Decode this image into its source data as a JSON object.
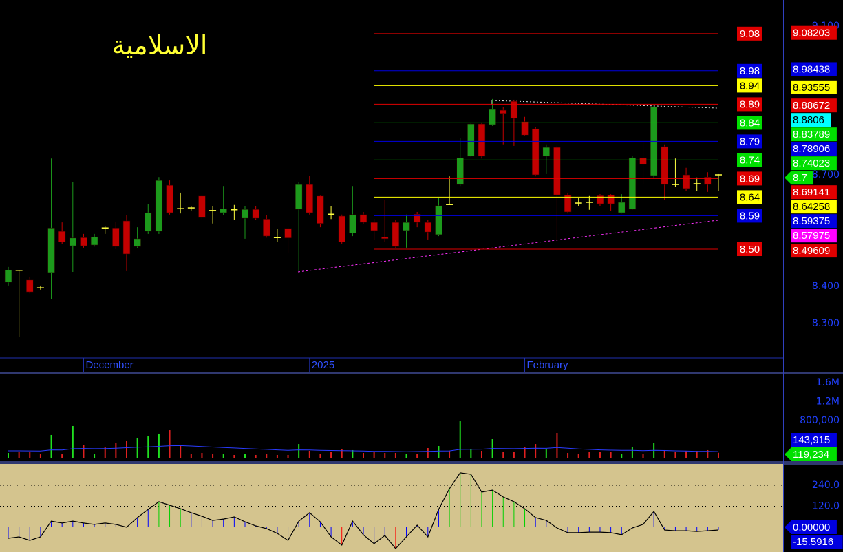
{
  "chart_data": [
    {
      "type": "candlestick",
      "title": "الاسلامية",
      "title_color": "#ffff33",
      "categories": [
        null,
        null,
        null,
        null,
        null,
        null,
        null,
        "December",
        null,
        null,
        null,
        null,
        null,
        null,
        null,
        null,
        null,
        null,
        null,
        null,
        null,
        null,
        null,
        null,
        null,
        null,
        null,
        null,
        "2025",
        null,
        null,
        null,
        null,
        null,
        null,
        null,
        null,
        null,
        null,
        null,
        null,
        null,
        null,
        null,
        null,
        null,
        null,
        null,
        "February",
        null,
        null,
        null,
        null,
        null,
        null,
        null,
        null,
        null,
        null,
        null,
        null,
        null,
        null,
        null,
        null,
        null,
        null
      ],
      "open": [
        8.411,
        8.443,
        8.417,
        8.396,
        8.437,
        8.548,
        8.509,
        8.531,
        8.511,
        8.557,
        8.557,
        8.576,
        8.507,
        8.548,
        8.548,
        8.672,
        8.609,
        8.611,
        8.643,
        8.604,
        8.598,
        8.606,
        8.583,
        8.607,
        8.581,
        8.531,
        8.556,
        8.607,
        8.674,
        8.643,
        8.594,
        8.589,
        8.543,
        8.593,
        8.572,
        8.533,
        8.572,
        8.55,
        8.594,
        8.572,
        8.539,
        8.62,
        8.674,
        8.75,
        8.837,
        8.835,
        8.874,
        8.898,
        8.843,
        8.824,
        8.75,
        8.774,
        8.646,
        8.624,
        8.626,
        8.644,
        8.646,
        8.598,
        8.607,
        8.746,
        8.698,
        8.776,
        8.674,
        8.7,
        8.676,
        8.694,
        8.7
      ],
      "high": [
        8.452,
        8.443,
        8.426,
        8.402,
        8.744,
        8.572,
        8.68,
        8.541,
        8.541,
        8.561,
        8.574,
        8.591,
        8.559,
        8.622,
        8.694,
        8.685,
        8.652,
        8.615,
        8.646,
        8.615,
        8.67,
        8.619,
        8.615,
        8.615,
        8.591,
        8.554,
        8.559,
        8.68,
        8.698,
        8.646,
        8.615,
        8.593,
        8.67,
        8.6,
        8.581,
        8.633,
        8.578,
        8.593,
        8.6,
        8.578,
        8.639,
        8.696,
        8.8,
        8.841,
        8.841,
        8.904,
        8.883,
        8.902,
        8.856,
        8.828,
        8.782,
        8.778,
        8.652,
        8.639,
        8.643,
        8.648,
        8.648,
        8.648,
        8.75,
        8.786,
        8.887,
        8.782,
        8.744,
        8.719,
        8.693,
        8.707,
        8.702
      ],
      "low": [
        8.402,
        8.263,
        8.381,
        8.391,
        8.365,
        8.513,
        8.439,
        8.504,
        8.507,
        8.541,
        8.5,
        8.441,
        8.504,
        8.541,
        8.541,
        8.593,
        8.596,
        8.604,
        8.581,
        8.569,
        8.591,
        8.578,
        8.528,
        8.578,
        8.531,
        8.519,
        8.491,
        8.441,
        8.593,
        8.559,
        8.581,
        8.515,
        8.535,
        8.569,
        8.526,
        8.519,
        8.504,
        8.504,
        8.559,
        8.526,
        8.535,
        8.619,
        8.67,
        8.748,
        8.744,
        8.832,
        8.782,
        8.778,
        8.804,
        8.696,
        8.702,
        8.522,
        8.596,
        8.615,
        8.606,
        8.615,
        8.602,
        8.596,
        8.606,
        8.674,
        8.693,
        8.633,
        8.667,
        8.656,
        8.656,
        8.654,
        8.657
      ],
      "close": [
        8.444,
        8.443,
        8.385,
        8.396,
        8.557,
        8.519,
        8.53,
        8.509,
        8.533,
        8.557,
        8.507,
        8.487,
        8.528,
        8.598,
        8.685,
        8.598,
        8.609,
        8.611,
        8.585,
        8.604,
        8.609,
        8.606,
        8.607,
        8.583,
        8.535,
        8.531,
        8.53,
        8.674,
        8.598,
        8.569,
        8.594,
        8.519,
        8.593,
        8.572,
        8.55,
        8.528,
        8.507,
        8.572,
        8.572,
        8.546,
        8.617,
        8.62,
        8.746,
        8.837,
        8.75,
        8.876,
        8.865,
        8.852,
        8.807,
        8.7,
        8.774,
        8.646,
        8.6,
        8.624,
        8.626,
        8.622,
        8.622,
        8.626,
        8.746,
        8.728,
        8.883,
        8.674,
        8.674,
        8.663,
        8.676,
        8.674,
        8.7
      ],
      "up_color": "#1c9a1c",
      "down_color": "#c40000",
      "doji_color": "#ffff40",
      "ylim": [
        8.2074,
        9.1704
      ],
      "yticks": [
        {
          "value": 9.1,
          "label": "9.100"
        },
        {
          "value": 8.7,
          "label": "8.700"
        },
        {
          "value": 8.4,
          "label": "8.400"
        },
        {
          "value": 8.3,
          "label": "8.300"
        }
      ],
      "levels": [
        {
          "value": 9.08,
          "color": "#e00000"
        },
        {
          "value": 8.98,
          "color": "#0000e0"
        },
        {
          "value": 8.94,
          "color": "#ffff00"
        },
        {
          "value": 8.89,
          "color": "#e00000"
        },
        {
          "value": 8.84,
          "color": "#00e000"
        },
        {
          "value": 8.79,
          "color": "#0000e0"
        },
        {
          "value": 8.74,
          "color": "#00e000"
        },
        {
          "value": 8.69,
          "color": "#e00000"
        },
        {
          "value": 8.64,
          "color": "#ffff00"
        },
        {
          "value": 8.59,
          "color": "#0000e0"
        },
        {
          "value": 8.5,
          "label": "8.50",
          "color": "#e00000"
        }
      ],
      "price_labels": [
        {
          "value": 9.08203,
          "color": "#e00000"
        },
        {
          "value": 8.98438,
          "color": "#0000e0"
        },
        {
          "value": 8.93555,
          "color": "#ffff00"
        },
        {
          "value": 8.88672,
          "color": "#e00000"
        },
        {
          "value": 8.8806,
          "color": "#00ffff"
        },
        {
          "value": 8.83789,
          "color": "#00e000"
        },
        {
          "value": 8.78906,
          "color": "#0000e0"
        },
        {
          "value": 8.74023,
          "color": "#00e000"
        },
        {
          "value": 8.7,
          "color": "#00e000",
          "arrow": true
        },
        {
          "value": 8.69141,
          "color": "#e00000"
        },
        {
          "value": 8.64258,
          "color": "#ffff00"
        },
        {
          "value": 8.59375,
          "color": "#0000e0"
        },
        {
          "value": 8.57975,
          "color": "#ff00ff"
        },
        {
          "value": 8.49609,
          "color": "#e00000"
        }
      ]
    },
    {
      "type": "bar",
      "values": [
        116000,
        131000,
        145000,
        87000,
        495000,
        87000,
        684000,
        291000,
        87000,
        233000,
        335000,
        364000,
        436000,
        465000,
        524000,
        596000,
        291000,
        102000,
        116000,
        102000,
        87000,
        73000,
        87000,
        73000,
        87000,
        73000,
        73000,
        305000,
        160000,
        102000,
        131000,
        189000,
        175000,
        116000,
        131000,
        116000,
        116000,
        102000,
        102000,
        218000,
        262000,
        160000,
        785000,
        189000,
        160000,
        407000,
        131000,
        145000,
        233000,
        305000,
        204000,
        538000,
        116000,
        102000,
        131000,
        145000,
        145000,
        102000,
        247000,
        102000,
        320000,
        175000,
        145000,
        160000,
        160000,
        175000,
        119234
      ],
      "ma_values": [
        160000,
        160000,
        158000,
        155000,
        180000,
        178000,
        205000,
        210000,
        205000,
        208000,
        215000,
        225000,
        235000,
        245000,
        255000,
        268000,
        270000,
        262000,
        250000,
        240000,
        230000,
        220000,
        210000,
        200000,
        190000,
        180000,
        172000,
        180000,
        178000,
        172000,
        168000,
        165000,
        160000,
        155000,
        150000,
        148000,
        145000,
        142000,
        145000,
        150000,
        155000,
        158000,
        190000,
        192000,
        195000,
        210000,
        208000,
        205000,
        210000,
        215000,
        212000,
        230000,
        215000,
        200000,
        190000,
        180000,
        175000,
        172000,
        170000,
        165000,
        172000,
        168000,
        160000,
        155000,
        150000,
        148000,
        143915
      ],
      "ma_color": "#2a3cff",
      "ylim": [
        0,
        1760000
      ],
      "yticks": [
        {
          "value": 1600000,
          "label": "1.6M"
        },
        {
          "value": 1200000,
          "label": "1.2M"
        },
        {
          "value": 800000,
          "label": "800,000"
        }
      ],
      "price_labels": [
        {
          "value": 143915,
          "label": "143,915",
          "color": "#0000e0"
        },
        {
          "value": 119234,
          "label": "119,234",
          "color": "#00e000",
          "arrow": true
        }
      ]
    },
    {
      "type": "line",
      "values": [
        -63,
        -55,
        -75,
        -55,
        35,
        24,
        35,
        24,
        16,
        24,
        16,
        0,
        55,
        102,
        146,
        126,
        106,
        83,
        63,
        39,
        47,
        59,
        31,
        8,
        -8,
        -35,
        -75,
        35,
        83,
        31,
        -55,
        -102,
        35,
        -43,
        -94,
        -47,
        -122,
        -55,
        12,
        -55,
        102,
        220,
        311,
        303,
        201,
        212,
        173,
        146,
        106,
        55,
        39,
        -4,
        -31,
        -31,
        -28,
        -28,
        -31,
        -43,
        -4,
        16,
        90,
        -16,
        -20,
        -20,
        -24,
        -20,
        -15.5916
      ],
      "bar_colors": [
        "#0000ff",
        "#0000ff",
        "#0000ff",
        "#0000ff",
        "#0000ff",
        "#0000ff",
        "#0000ff",
        "#0000ff",
        "#0000ff",
        "#0000ff",
        "#0000ff",
        "#0000ff",
        "#0000ff",
        "#0000ff",
        "#00d000",
        "#00d000",
        "#00d000",
        "#0000ff",
        "#0000ff",
        "#0000ff",
        "#0000ff",
        "#0000ff",
        "#0000ff",
        "#0000ff",
        "#0000ff",
        "#0000ff",
        "#0000ff",
        "#0000ff",
        "#0000ff",
        "#0000ff",
        "#0000ff",
        "#ff0000",
        "#0000ff",
        "#0000ff",
        "#0000ff",
        "#0000ff",
        "#ff0000",
        "#0000ff",
        "#0000ff",
        "#0000ff",
        "#0000ff",
        "#00d000",
        "#00d000",
        "#00d000",
        "#00d000",
        "#00d000",
        "#00d000",
        "#00d000",
        "#00d000",
        "#0000ff",
        "#0000ff",
        "#0000ff",
        "#0000ff",
        "#0000ff",
        "#0000ff",
        "#0000ff",
        "#0000ff",
        "#0000ff",
        "#0000ff",
        "#0000ff",
        "#0000ff",
        "#0000ff",
        "#0000ff",
        "#0000ff",
        "#0000ff",
        "#0000ff",
        "#0000ff"
      ],
      "color": "#000000",
      "background": "#d4c48e",
      "grid": true,
      "ylim": [
        -141.6,
        358
      ],
      "yticks": [
        {
          "value": 240,
          "label": "240.0"
        },
        {
          "value": 120,
          "label": "120.0"
        }
      ],
      "price_labels": [
        {
          "value": 0,
          "label": "0.00000",
          "color": "#0000e0",
          "arrow": true
        },
        {
          "value": -15.5916,
          "color": "#0000e0"
        }
      ]
    }
  ]
}
